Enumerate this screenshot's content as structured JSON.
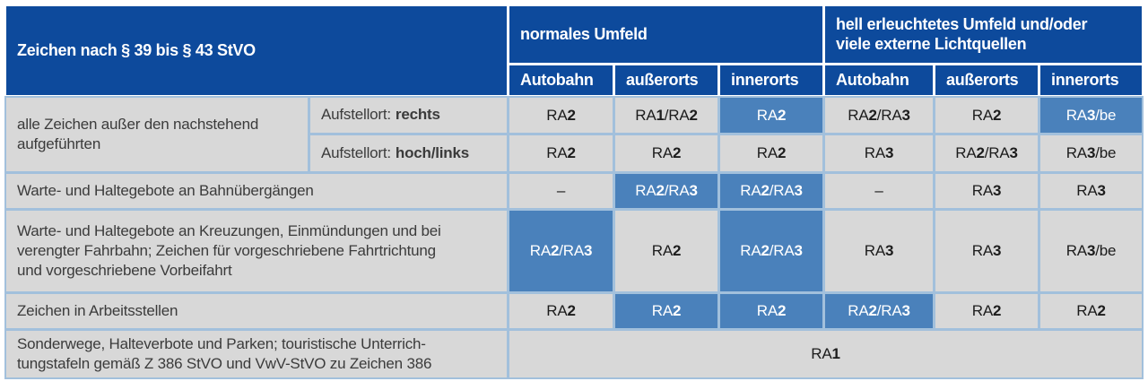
{
  "title": "Zeichen nach § 39 bis § 43 StVO",
  "env_groups": {
    "normal": "normales Umfeld",
    "bright": "hell erleuchtetes Umfeld und/oder\nviele externe Lichtquellen"
  },
  "columns": [
    "Autobahn",
    "außerorts",
    "innerorts",
    "Autobahn",
    "außerorts",
    "innerorts"
  ],
  "rows": [
    {
      "label": "alle Zeichen außer den nachstehend\naufgeführten",
      "sub_prefix": "Aufstellort:",
      "sub_bold": "rechts",
      "cells": [
        "RA2",
        "RA1/RA2",
        "RA2",
        "RA2/RA3",
        "RA2",
        "RA3/be"
      ],
      "highlights": [
        false,
        false,
        true,
        false,
        false,
        true
      ]
    },
    {
      "sub_prefix": "Aufstellort:",
      "sub_bold": "hoch/links",
      "cells": [
        "RA2",
        "RA2",
        "RA2",
        "RA3",
        "RA2/RA3",
        "RA3/be"
      ],
      "highlights": [
        false,
        false,
        false,
        false,
        false,
        false
      ]
    },
    {
      "label": "Warte- und Haltegebote an Bahnübergängen",
      "cells": [
        "–",
        "RA2/RA3",
        "RA2/RA3",
        "–",
        "RA3",
        "RA3"
      ],
      "highlights": [
        false,
        true,
        true,
        false,
        false,
        false
      ]
    },
    {
      "label": "Warte- und Haltegebote an Kreuzungen, Einmündungen und bei\nverengter Fahrbahn; Zeichen für vorgeschriebene Fahrtrichtung\nund vorgeschriebene Vorbeifahrt",
      "cells": [
        "RA2/RA3",
        "RA2",
        "RA2/RA3",
        "RA3",
        "RA3",
        "RA3/be"
      ],
      "highlights": [
        true,
        false,
        true,
        false,
        false,
        false
      ]
    },
    {
      "label": "Zeichen in Arbeitsstellen",
      "cells": [
        "RA2",
        "RA2",
        "RA2",
        "RA2/RA3",
        "RA2",
        "RA2"
      ],
      "highlights": [
        false,
        true,
        true,
        true,
        false,
        false
      ]
    },
    {
      "label": "Sonderwege, Halteverbote und Parken; touristische Unterrich-\ntungstafeln gemäß Z 386 StVO und VwV-StVO zu Zeichen 386",
      "cells": [
        "RA1"
      ],
      "highlights": [
        false
      ]
    }
  ],
  "colors": {
    "header_blue": "#0d4a9c",
    "highlight_blue": "#4a81bb",
    "cell_gray": "#d8d8d8",
    "grid_line_blue": "#a2c0dc"
  }
}
